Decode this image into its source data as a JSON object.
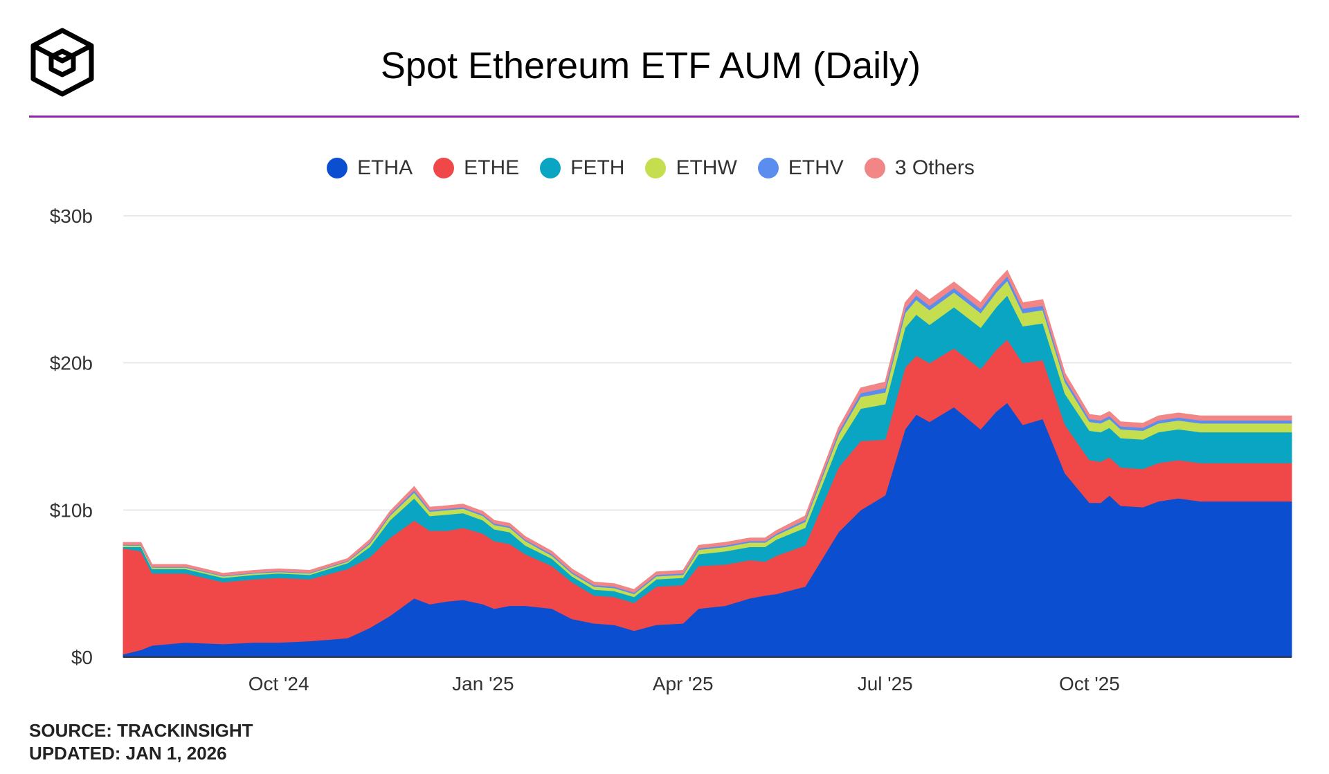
{
  "header": {
    "title": "Spot Ethereum ETF AUM (Daily)"
  },
  "footer": {
    "source": "SOURCE: TRACKINSIGHT",
    "updated": "UPDATED: JAN 1, 2026"
  },
  "chart_data": {
    "type": "area",
    "stacked": true,
    "title": "Spot Ethereum ETF AUM (Daily)",
    "xlabel": "",
    "ylabel": "",
    "ylim": [
      0,
      30
    ],
    "yticks": [
      {
        "value": 0,
        "label": "$0"
      },
      {
        "value": 10,
        "label": "$10b"
      },
      {
        "value": 20,
        "label": "$20b"
      },
      {
        "value": 30,
        "label": "$30b"
      }
    ],
    "xlim": [
      "2024-07-23",
      "2025-12-31"
    ],
    "xticks": [
      {
        "date": "2024-10-01",
        "label": "Oct '24"
      },
      {
        "date": "2025-01-01",
        "label": "Jan '25"
      },
      {
        "date": "2025-04-01",
        "label": "Apr '25"
      },
      {
        "date": "2025-07-01",
        "label": "Jul '25"
      },
      {
        "date": "2025-10-01",
        "label": "Oct '25"
      }
    ],
    "grid": true,
    "legend_position": "top",
    "x": [
      "2024-07-23",
      "2024-07-31",
      "2024-08-05",
      "2024-08-20",
      "2024-09-06",
      "2024-09-20",
      "2024-10-01",
      "2024-10-15",
      "2024-11-01",
      "2024-11-11",
      "2024-11-20",
      "2024-12-01",
      "2024-12-08",
      "2024-12-16",
      "2024-12-23",
      "2025-01-01",
      "2025-01-06",
      "2025-01-13",
      "2025-01-20",
      "2025-02-01",
      "2025-02-10",
      "2025-02-20",
      "2025-03-01",
      "2025-03-10",
      "2025-03-20",
      "2025-04-01",
      "2025-04-08",
      "2025-04-20",
      "2025-05-01",
      "2025-05-08",
      "2025-05-13",
      "2025-05-26",
      "2025-06-10",
      "2025-06-20",
      "2025-07-01",
      "2025-07-10",
      "2025-07-15",
      "2025-07-21",
      "2025-08-01",
      "2025-08-13",
      "2025-08-20",
      "2025-08-25",
      "2025-09-01",
      "2025-09-10",
      "2025-09-20",
      "2025-10-01",
      "2025-10-06",
      "2025-10-10",
      "2025-10-15",
      "2025-10-25",
      "2025-11-01",
      "2025-11-10",
      "2025-11-20",
      "2025-12-01",
      "2025-12-08",
      "2025-12-20",
      "2025-12-31"
    ],
    "series": [
      {
        "name": "ETHA",
        "color": "#0b4fd0",
        "values": [
          0.2,
          0.5,
          0.8,
          1.0,
          0.9,
          1.0,
          1.0,
          1.1,
          1.3,
          2.0,
          2.8,
          4.0,
          3.6,
          3.8,
          3.9,
          3.6,
          3.3,
          3.5,
          3.5,
          3.3,
          2.6,
          2.3,
          2.2,
          1.8,
          2.2,
          2.3,
          3.3,
          3.5,
          4.0,
          4.2,
          4.3,
          4.8,
          8.5,
          10.0,
          11.0,
          15.5,
          16.5,
          16.0,
          17.0,
          15.5,
          16.7,
          17.3,
          15.8,
          16.2,
          12.5,
          10.5,
          10.5,
          11.0,
          10.3,
          10.2,
          10.6,
          10.8,
          10.6,
          10.6,
          10.6,
          10.6,
          10.6
        ]
      },
      {
        "name": "ETHE",
        "color": "#f04848",
        "values": [
          7.2,
          6.7,
          4.9,
          4.7,
          4.2,
          4.3,
          4.4,
          4.2,
          4.7,
          4.8,
          5.3,
          5.3,
          5.0,
          4.8,
          4.9,
          4.8,
          4.6,
          4.2,
          3.5,
          2.9,
          2.5,
          1.9,
          1.9,
          1.9,
          2.6,
          2.6,
          2.9,
          2.8,
          2.6,
          2.3,
          2.6,
          2.8,
          4.4,
          4.7,
          3.8,
          4.2,
          4.0,
          4.0,
          4.0,
          4.1,
          4.2,
          4.3,
          4.2,
          4.0,
          3.3,
          2.9,
          2.8,
          2.6,
          2.6,
          2.6,
          2.6,
          2.6,
          2.6,
          2.6,
          2.6,
          2.6,
          2.6
        ]
      },
      {
        "name": "FETH",
        "color": "#0aa5c2",
        "values": [
          0.1,
          0.3,
          0.3,
          0.3,
          0.3,
          0.3,
          0.3,
          0.3,
          0.4,
          0.7,
          1.2,
          1.5,
          1.0,
          1.1,
          1.0,
          0.9,
          0.8,
          0.8,
          0.6,
          0.5,
          0.4,
          0.4,
          0.4,
          0.4,
          0.5,
          0.5,
          0.8,
          0.9,
          0.9,
          1.0,
          1.1,
          1.2,
          1.6,
          2.2,
          2.4,
          2.7,
          2.8,
          2.6,
          2.8,
          2.8,
          2.9,
          3.0,
          2.5,
          2.5,
          2.1,
          2.0,
          2.0,
          2.0,
          2.0,
          2.0,
          2.1,
          2.1,
          2.1,
          2.1,
          2.1,
          2.1,
          2.1
        ]
      },
      {
        "name": "ETHW",
        "color": "#c4de4f",
        "values": [
          0.1,
          0.1,
          0.1,
          0.1,
          0.1,
          0.1,
          0.1,
          0.1,
          0.1,
          0.2,
          0.3,
          0.4,
          0.3,
          0.3,
          0.3,
          0.3,
          0.3,
          0.3,
          0.3,
          0.2,
          0.2,
          0.2,
          0.2,
          0.2,
          0.2,
          0.2,
          0.3,
          0.3,
          0.3,
          0.3,
          0.3,
          0.4,
          0.6,
          0.8,
          0.8,
          1.0,
          1.0,
          1.0,
          1.0,
          1.0,
          1.0,
          1.0,
          0.9,
          0.9,
          0.8,
          0.6,
          0.6,
          0.6,
          0.6,
          0.6,
          0.6,
          0.6,
          0.6,
          0.6,
          0.6,
          0.6,
          0.6
        ]
      },
      {
        "name": "ETHV",
        "color": "#5b8def",
        "values": [
          0.05,
          0.05,
          0.05,
          0.05,
          0.05,
          0.05,
          0.05,
          0.05,
          0.05,
          0.1,
          0.1,
          0.15,
          0.1,
          0.1,
          0.1,
          0.1,
          0.1,
          0.1,
          0.1,
          0.1,
          0.1,
          0.1,
          0.1,
          0.1,
          0.1,
          0.1,
          0.1,
          0.1,
          0.1,
          0.1,
          0.1,
          0.15,
          0.2,
          0.25,
          0.3,
          0.3,
          0.3,
          0.3,
          0.3,
          0.3,
          0.3,
          0.3,
          0.3,
          0.3,
          0.25,
          0.2,
          0.2,
          0.2,
          0.2,
          0.2,
          0.2,
          0.2,
          0.2,
          0.2,
          0.2,
          0.2,
          0.2
        ]
      },
      {
        "name": "3 Others",
        "color": "#f28686",
        "values": [
          0.15,
          0.15,
          0.15,
          0.15,
          0.15,
          0.15,
          0.15,
          0.15,
          0.15,
          0.2,
          0.2,
          0.25,
          0.2,
          0.2,
          0.2,
          0.2,
          0.2,
          0.2,
          0.2,
          0.2,
          0.2,
          0.2,
          0.2,
          0.2,
          0.2,
          0.2,
          0.2,
          0.2,
          0.2,
          0.2,
          0.2,
          0.25,
          0.3,
          0.35,
          0.4,
          0.4,
          0.4,
          0.4,
          0.4,
          0.4,
          0.4,
          0.4,
          0.4,
          0.4,
          0.35,
          0.3,
          0.3,
          0.3,
          0.3,
          0.3,
          0.3,
          0.3,
          0.3,
          0.3,
          0.3,
          0.3,
          0.3
        ]
      }
    ]
  }
}
